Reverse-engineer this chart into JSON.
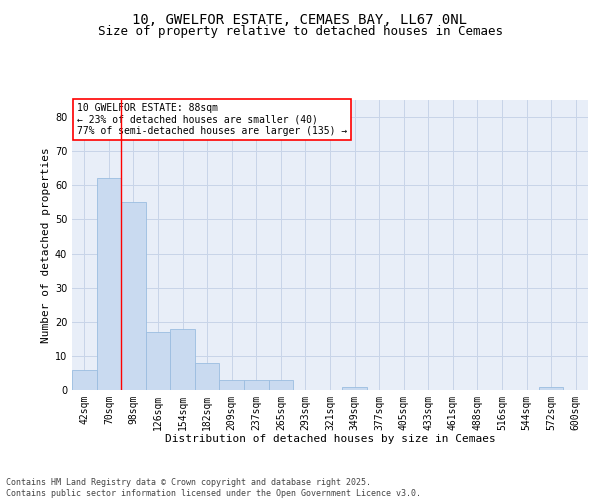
{
  "title": "10, GWELFOR ESTATE, CEMAES BAY, LL67 0NL",
  "subtitle": "Size of property relative to detached houses in Cemaes",
  "xlabel": "Distribution of detached houses by size in Cemaes",
  "ylabel": "Number of detached properties",
  "bar_labels": [
    "42sqm",
    "70sqm",
    "98sqm",
    "126sqm",
    "154sqm",
    "182sqm",
    "209sqm",
    "237sqm",
    "265sqm",
    "293sqm",
    "321sqm",
    "349sqm",
    "377sqm",
    "405sqm",
    "433sqm",
    "461sqm",
    "488sqm",
    "516sqm",
    "544sqm",
    "572sqm",
    "600sqm"
  ],
  "bar_values": [
    6,
    62,
    55,
    17,
    18,
    8,
    3,
    3,
    3,
    0,
    0,
    1,
    0,
    0,
    0,
    0,
    0,
    0,
    0,
    1,
    0
  ],
  "bar_color": "#c9daf0",
  "bar_edge_color": "#9bbde0",
  "ylim": [
    0,
    85
  ],
  "yticks": [
    0,
    10,
    20,
    30,
    40,
    50,
    60,
    70,
    80
  ],
  "grid_color": "#c8d4e8",
  "bg_color": "#e8eef8",
  "property_label": "10 GWELFOR ESTATE: 88sqm",
  "annotation_line1": "← 23% of detached houses are smaller (40)",
  "annotation_line2": "77% of semi-detached houses are larger (135) →",
  "red_line_x": 1.5,
  "footer_line1": "Contains HM Land Registry data © Crown copyright and database right 2025.",
  "footer_line2": "Contains public sector information licensed under the Open Government Licence v3.0.",
  "title_fontsize": 10,
  "subtitle_fontsize": 9,
  "axis_label_fontsize": 8,
  "tick_fontsize": 7,
  "footer_fontsize": 6,
  "annotation_fontsize": 7
}
